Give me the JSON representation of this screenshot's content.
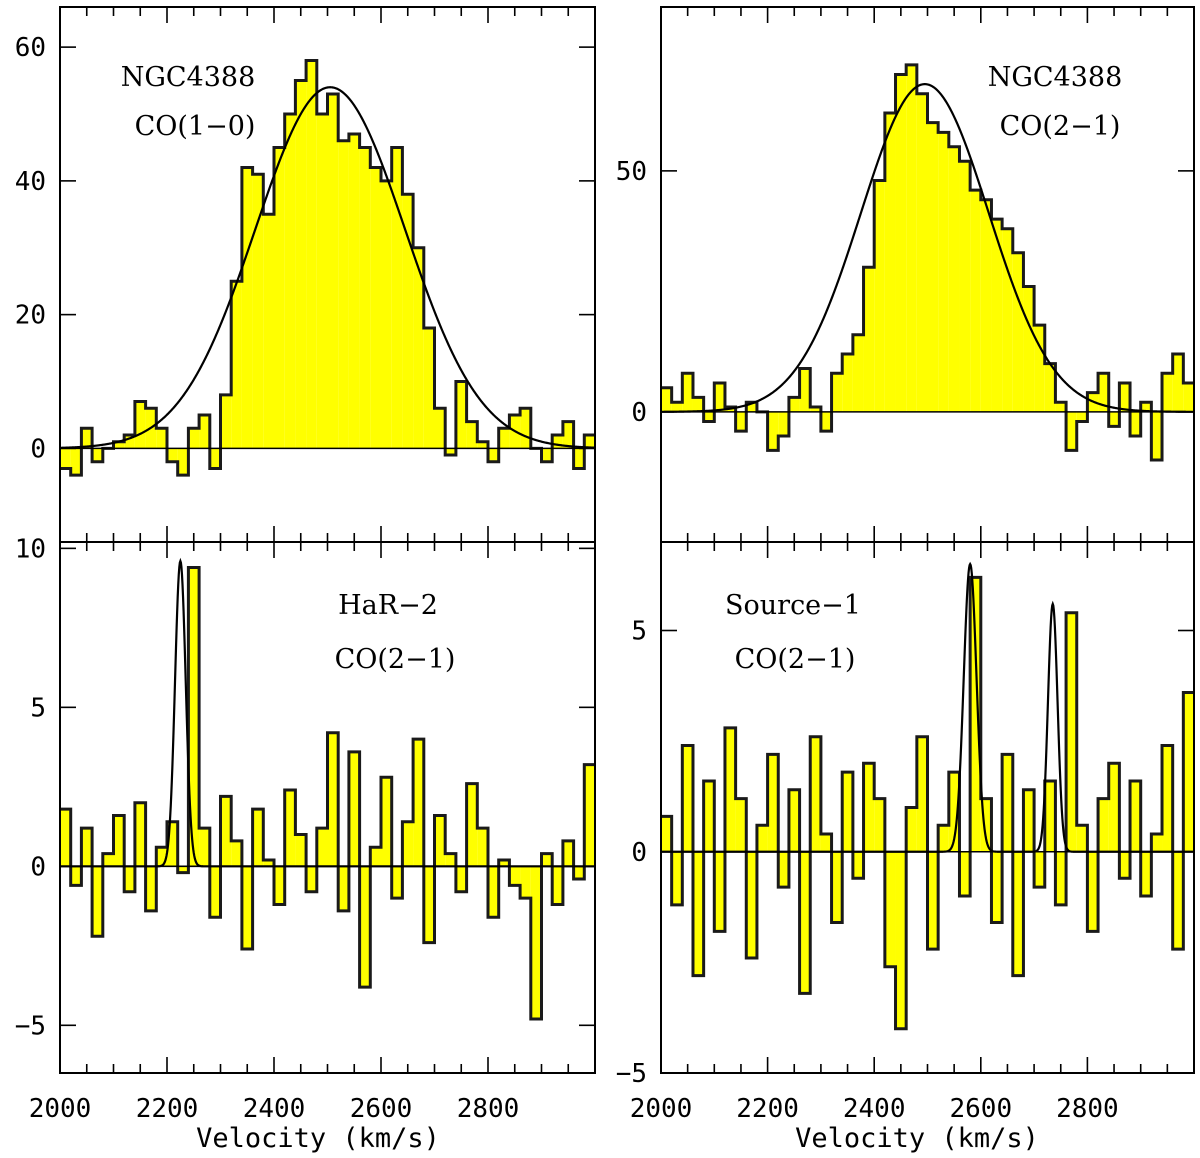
{
  "chart_data": [
    {
      "type": "histogram-step",
      "panel": "top-left",
      "annotation": [
        "NGC4388",
        "CO(1−0)"
      ],
      "xlim": [
        2000,
        3000
      ],
      "ylim": [
        -14,
        66
      ],
      "yticks": [
        60,
        40,
        20,
        0
      ],
      "ytick_labels": [
        "60",
        "40",
        "20",
        "0"
      ],
      "fill_color": "#ffff00",
      "fit": {
        "shape": "gaussian",
        "amplitude": 54,
        "center": 2505,
        "sigma": 140
      },
      "series": [
        {
          "x": [
            2000,
            2020,
            2040,
            2060,
            2080,
            2100,
            2120,
            2140,
            2160,
            2180,
            2200,
            2220,
            2240,
            2260,
            2280,
            2300,
            2320,
            2340,
            2360,
            2380,
            2400,
            2420,
            2440,
            2460,
            2480,
            2500,
            2520,
            2540,
            2560,
            2580,
            2600,
            2620,
            2640,
            2660,
            2680,
            2700,
            2720,
            2740,
            2760,
            2780,
            2800,
            2820,
            2840,
            2860,
            2880,
            2900,
            2920,
            2940,
            2960,
            2980
          ],
          "y": [
            -3,
            -4,
            3,
            -2,
            0,
            1,
            2,
            7,
            6,
            3,
            -2,
            -4,
            3,
            5,
            -3,
            8,
            25,
            42,
            41,
            35,
            45,
            50,
            55,
            58,
            50,
            53,
            46,
            47,
            45,
            42,
            40,
            45,
            38,
            30,
            18,
            6,
            -1,
            10,
            4,
            1,
            -2,
            3,
            5,
            6,
            0,
            -2,
            2,
            4,
            -3,
            2
          ]
        }
      ]
    },
    {
      "type": "histogram-step",
      "panel": "top-right",
      "annotation": [
        "NGC4388",
        "CO(2−1)"
      ],
      "xlim": [
        2000,
        3000
      ],
      "ylim": [
        -27,
        84
      ],
      "yticks": [
        50,
        0
      ],
      "ytick_labels": [
        "50",
        "0"
      ],
      "fill_color": "#ffff00",
      "fit": {
        "shape": "gaussian",
        "amplitude": 68,
        "center": 2495,
        "sigma": 120
      },
      "series": [
        {
          "x": [
            2000,
            2020,
            2040,
            2060,
            2080,
            2100,
            2120,
            2140,
            2160,
            2180,
            2200,
            2220,
            2240,
            2260,
            2280,
            2300,
            2320,
            2340,
            2360,
            2380,
            2400,
            2420,
            2440,
            2460,
            2480,
            2500,
            2520,
            2540,
            2560,
            2580,
            2600,
            2620,
            2640,
            2660,
            2680,
            2700,
            2720,
            2740,
            2760,
            2780,
            2800,
            2820,
            2840,
            2860,
            2880,
            2900,
            2920,
            2940,
            2960,
            2980
          ],
          "y": [
            5,
            2,
            8,
            3,
            -2,
            6,
            1,
            -4,
            2,
            0,
            -8,
            -5,
            3,
            9,
            1,
            -4,
            8,
            12,
            16,
            30,
            48,
            62,
            70,
            72,
            66,
            60,
            58,
            55,
            52,
            46,
            44,
            40,
            38,
            33,
            26,
            18,
            10,
            2,
            -8,
            -2,
            4,
            8,
            -3,
            6,
            -5,
            2,
            -10,
            8,
            12,
            6
          ]
        }
      ]
    },
    {
      "type": "histogram-step",
      "panel": "bottom-left",
      "annotation": [
        "HaR−2",
        "CO(2−1)"
      ],
      "xlim": [
        2000,
        3000
      ],
      "ylim": [
        -6.5,
        10.2
      ],
      "yticks": [
        10,
        5,
        0,
        -5
      ],
      "ytick_labels": [
        "10",
        "5",
        "0",
        "−5"
      ],
      "fill_color": "#ffff00",
      "fit": {
        "shape": "gaussian",
        "amplitude": 9.6,
        "center": 2225,
        "sigma": 10
      },
      "series": [
        {
          "x": [
            2000,
            2020,
            2040,
            2060,
            2080,
            2100,
            2120,
            2140,
            2160,
            2180,
            2200,
            2220,
            2240,
            2260,
            2280,
            2300,
            2320,
            2340,
            2360,
            2380,
            2400,
            2420,
            2440,
            2460,
            2480,
            2500,
            2520,
            2540,
            2560,
            2580,
            2600,
            2620,
            2640,
            2660,
            2680,
            2700,
            2720,
            2740,
            2760,
            2780,
            2800,
            2820,
            2840,
            2860,
            2880,
            2900,
            2920,
            2940,
            2960,
            2980
          ],
          "y": [
            1.8,
            -0.6,
            1.2,
            -2.2,
            0.4,
            1.6,
            -0.8,
            2.0,
            -1.4,
            0.6,
            1.4,
            -0.2,
            9.4,
            1.2,
            -1.6,
            2.2,
            0.8,
            -2.6,
            1.8,
            0.2,
            -1.2,
            2.4,
            1.0,
            -0.8,
            1.2,
            4.2,
            -1.4,
            3.6,
            -3.8,
            0.6,
            2.8,
            -1.0,
            1.4,
            4.0,
            -2.4,
            1.6,
            0.4,
            -0.8,
            2.6,
            1.2,
            -1.6,
            0.2,
            -0.6,
            -1.0,
            -4.8,
            0.4,
            -1.2,
            0.8,
            -0.4,
            3.2
          ]
        }
      ]
    },
    {
      "type": "histogram-step",
      "panel": "bottom-right",
      "annotation": [
        "Source−1",
        "CO(2−1)"
      ],
      "xlim": [
        2000,
        3000
      ],
      "ylim": [
        -5,
        7
      ],
      "yticks": [
        5,
        0,
        -5
      ],
      "ytick_labels": [
        "5",
        "0",
        "−5"
      ],
      "fill_color": "#ffff00",
      "fit": {
        "shape": "two-gaussians",
        "components": [
          {
            "amplitude": 6.5,
            "center": 2580,
            "sigma": 12
          },
          {
            "amplitude": 5.6,
            "center": 2735,
            "sigma": 9
          }
        ]
      },
      "series": [
        {
          "x": [
            2000,
            2020,
            2040,
            2060,
            2080,
            2100,
            2120,
            2140,
            2160,
            2180,
            2200,
            2220,
            2240,
            2260,
            2280,
            2300,
            2320,
            2340,
            2360,
            2380,
            2400,
            2420,
            2440,
            2460,
            2480,
            2500,
            2520,
            2540,
            2560,
            2580,
            2600,
            2620,
            2640,
            2660,
            2680,
            2700,
            2720,
            2740,
            2760,
            2780,
            2800,
            2820,
            2840,
            2860,
            2880,
            2900,
            2920,
            2940,
            2960,
            2980
          ],
          "y": [
            0.8,
            -1.2,
            2.4,
            -2.8,
            1.6,
            -1.8,
            2.8,
            1.2,
            -2.4,
            0.6,
            2.2,
            -0.8,
            1.4,
            -3.2,
            2.6,
            0.4,
            -1.6,
            1.8,
            -0.6,
            2.0,
            1.2,
            -2.6,
            -4.0,
            1.0,
            2.6,
            -2.2,
            0.6,
            1.8,
            -1.0,
            6.2,
            1.2,
            -1.6,
            2.2,
            -2.8,
            1.4,
            -0.8,
            1.6,
            -1.2,
            5.4,
            0.6,
            -1.8,
            1.2,
            2.0,
            -0.6,
            1.6,
            -1.0,
            0.4,
            2.4,
            -2.2,
            3.6
          ]
        }
      ]
    }
  ],
  "axes": {
    "x_tick_labels": [
      "2000",
      "2200",
      "2400",
      "2600",
      "2800"
    ],
    "x_title": "Velocity (km/s)"
  }
}
